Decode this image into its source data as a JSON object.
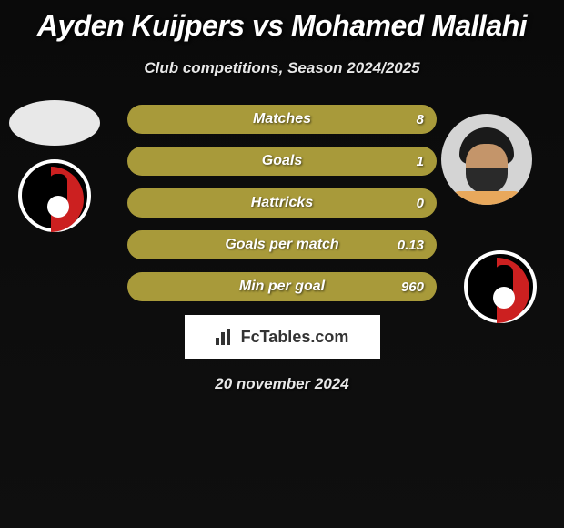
{
  "title": "Ayden Kuijpers vs Mohamed Mallahi",
  "subtitle": "Club competitions, Season 2024/2025",
  "date": "20 november 2024",
  "watermark": "FcTables.com",
  "stats": [
    {
      "label": "Matches",
      "value": "8"
    },
    {
      "label": "Goals",
      "value": "1"
    },
    {
      "label": "Hattricks",
      "value": "0"
    },
    {
      "label": "Goals per match",
      "value": "0.13"
    },
    {
      "label": "Min per goal",
      "value": "960"
    }
  ],
  "colors": {
    "bar_background": "#a89a3a",
    "badge_red": "#cc2020",
    "badge_black": "#000000",
    "text_white": "#ffffff"
  }
}
